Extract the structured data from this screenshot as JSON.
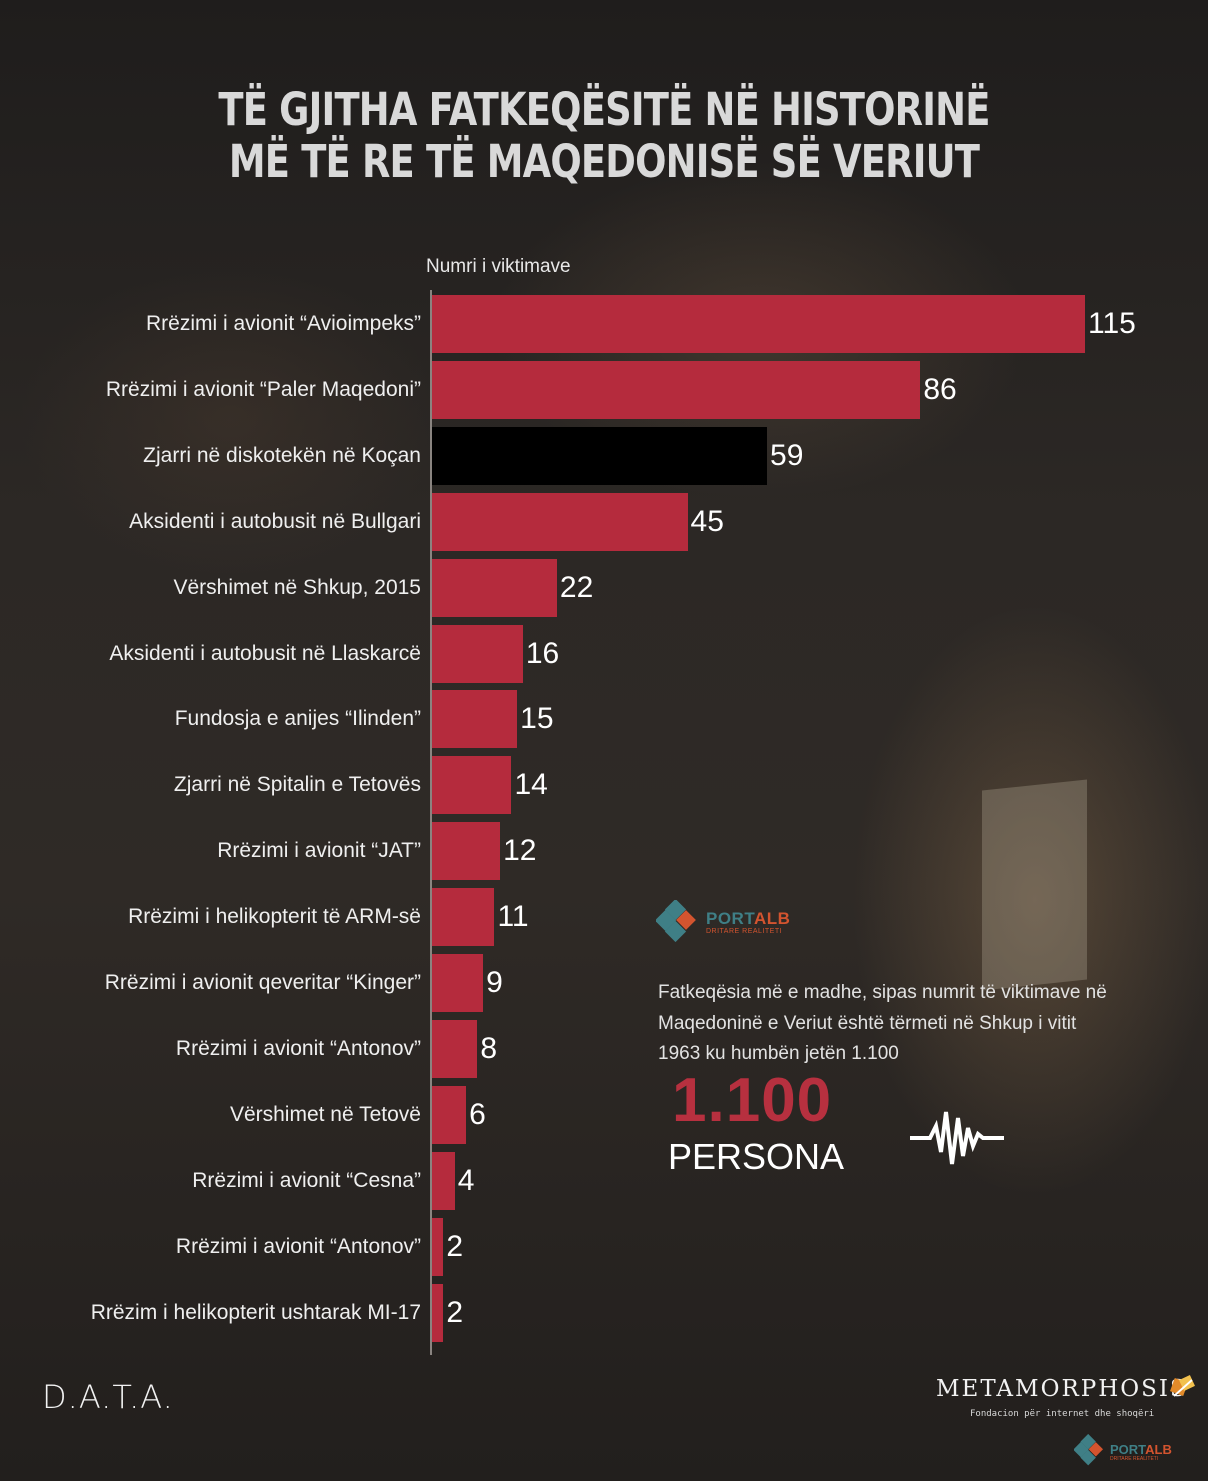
{
  "title": {
    "line1": "TË GJITHA FATKEQËSITË NË HISTORINË",
    "line2": "MË TË RE TË MAQEDONISË SË VERIUT"
  },
  "colors": {
    "accent_red": "#b52b3d",
    "highlight_black": "#000000",
    "big_number": "#b7303f"
  },
  "chart_data": {
    "type": "bar",
    "orientation": "horizontal",
    "xlabel": "Numri i viktimave",
    "xlim": [
      0,
      115
    ],
    "grid": false,
    "legend": "none",
    "categories": [
      "Rrëzimi i avionit “Avioimpeks”",
      "Rrëzimi i avionit “Paler Maqedoni”",
      "Zjarri në diskotekën në Koçan",
      "Aksidenti i autobusit në Bullgari",
      "Vërshimet në Shkup, 2015",
      "Aksidenti i autobusit në Llaskarcë",
      "Fundosja e anijes “Ilinden”",
      "Zjarri në Spitalin e Tetovës",
      "Rrëzimi i avionit “JAT”",
      "Rrëzimi i helikopterit të ARM-së",
      "Rrëzimi i avionit qeveritar “Kinger”",
      "Rrëzimi i avionit “Antonov”",
      "Vërshimet në Tetovë",
      "Rrëzimi i avionit “Cesna”",
      "Rrëzimi i avionit “Antonov”",
      "Rrëzim i helikopterit ushtarak MI-17"
    ],
    "values": [
      115,
      86,
      59,
      45,
      22,
      16,
      15,
      14,
      12,
      11,
      9,
      8,
      6,
      4,
      2,
      2
    ],
    "highlighted_index": 2
  },
  "annotation": {
    "text": "Fatkeqësia më e madhe, sipas numrit të viktimave në Maqedoninë e Veriut është tërmeti në Shkup i vitit 1963 ku humbën jetën 1.100",
    "big_number": "1.100",
    "unit": "PERSONA",
    "icon": "seismograph-icon"
  },
  "logos": {
    "data": "D.A.T.A.",
    "metamorphosis": "METAMORPHOSIS",
    "metamorphosis_sub": "Fondacion për internet dhe shoqëri",
    "portalb_main": "PORT",
    "portalb_accent": "ALB",
    "portalb_sub": "DRITARE REALITETI"
  }
}
